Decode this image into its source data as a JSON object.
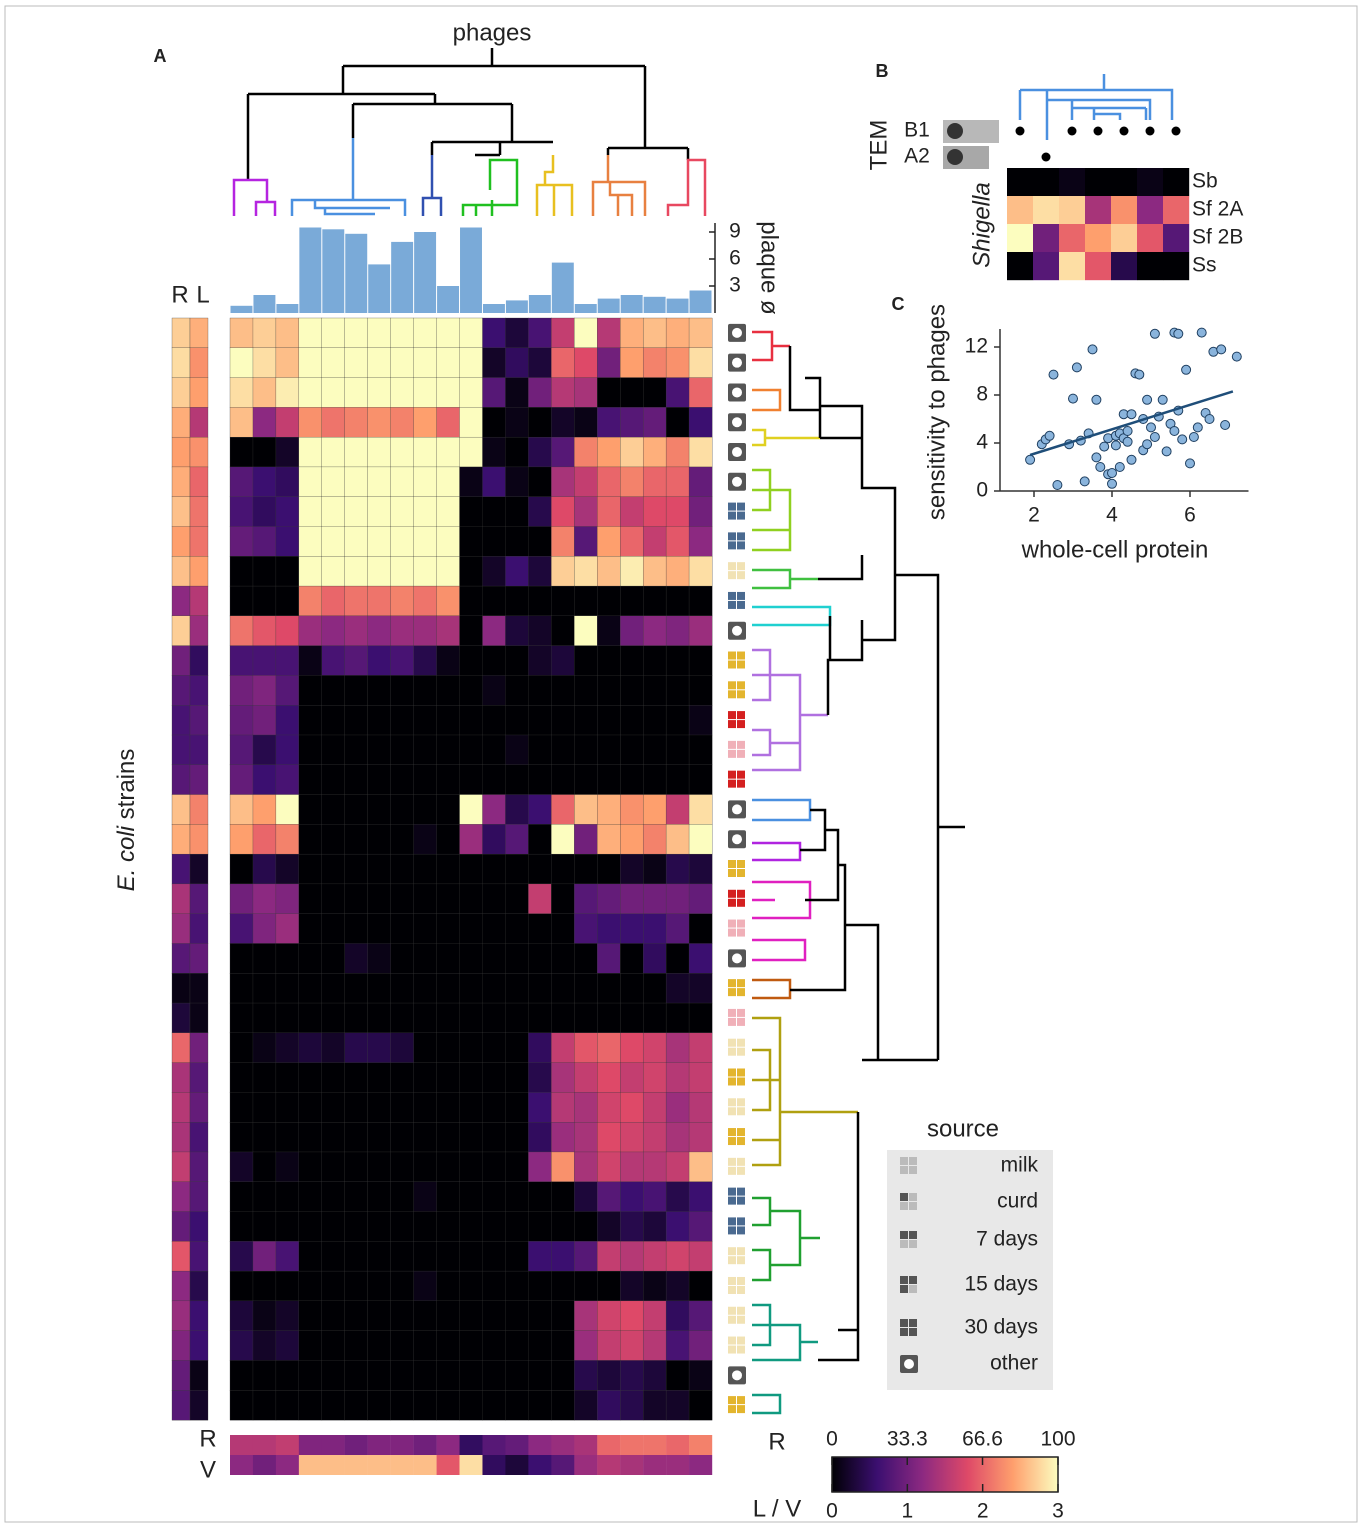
{
  "panel_a": {
    "label": "A",
    "title": "phages",
    "y_label_italic": "E. coli",
    "y_label": "strains",
    "side_headers": [
      "R",
      "L"
    ],
    "bottom_headers": [
      "R",
      "V"
    ],
    "plaque": {
      "label": "plaque ø",
      "ylim": [
        0,
        10
      ],
      "yticks": [
        3,
        6,
        9
      ],
      "color": "#7aaad8",
      "values": [
        0.8,
        2,
        1,
        9.5,
        9.3,
        8.8,
        5.4,
        7.9,
        9,
        3,
        9.5,
        1,
        1.4,
        2,
        5.6,
        1,
        1.6,
        2,
        1.8,
        1.6,
        2.5
      ]
    },
    "heatmap": {
      "rows": [
        [
          2.6,
          2.7,
          2.6,
          3,
          3,
          3,
          3,
          3,
          3,
          3,
          3,
          0.6,
          0.3,
          0.7,
          1.6,
          3,
          1.5,
          2.5,
          2.6,
          2.5,
          2.6
        ],
        [
          3,
          2.8,
          2.6,
          3,
          3,
          3,
          3,
          3,
          3,
          3,
          3,
          0.2,
          0.5,
          0.3,
          2.0,
          1.8,
          1.0,
          2.4,
          2.2,
          2.3,
          2.8
        ],
        [
          2.8,
          2.6,
          2.9,
          3,
          3,
          3,
          3,
          3,
          3,
          3,
          3,
          0.8,
          0.1,
          1.0,
          1.5,
          1.4,
          0,
          0,
          0,
          0.7,
          2.0
        ],
        [
          2.6,
          1.2,
          1.6,
          2.3,
          2.1,
          2.2,
          2.3,
          2.2,
          2.4,
          2.0,
          3,
          0,
          0.1,
          0,
          0.2,
          0.1,
          0.7,
          0.8,
          0.9,
          0,
          0.6
        ],
        [
          0,
          0,
          0.2,
          3,
          3,
          3,
          3,
          3,
          3,
          3,
          3,
          0.1,
          0,
          0.4,
          0.8,
          2.2,
          2.4,
          2.7,
          2.5,
          2.2,
          2.8
        ],
        [
          0.8,
          0.6,
          0.5,
          3,
          3,
          3,
          3,
          3,
          3,
          3,
          0.1,
          0.6,
          0.1,
          0,
          1.4,
          1.6,
          2.0,
          2.2,
          2.0,
          2.0,
          0.9
        ],
        [
          0.7,
          0.5,
          0.6,
          3,
          3,
          3,
          3,
          3,
          3,
          3,
          0,
          0,
          0,
          0.4,
          1.8,
          1.4,
          2.0,
          1.6,
          1.8,
          1.8,
          1.0
        ],
        [
          0.9,
          0.8,
          0.6,
          3,
          3,
          3,
          3,
          3,
          3,
          3,
          0,
          0,
          0,
          0,
          2.2,
          0.8,
          2.4,
          2.0,
          1.6,
          1.9,
          1.2
        ],
        [
          0,
          0,
          0,
          3,
          3,
          3,
          3,
          3,
          3,
          3,
          0,
          0.2,
          0.6,
          0.3,
          2.7,
          2.8,
          2.6,
          2.9,
          2.6,
          2.5,
          2.8
        ],
        [
          0,
          0,
          0,
          2.2,
          2.0,
          2.1,
          2.1,
          2.2,
          2.1,
          2.3,
          0,
          0,
          0,
          0,
          0,
          0,
          0,
          0,
          0,
          0,
          0
        ],
        [
          2.1,
          1.9,
          1.8,
          1.3,
          1.2,
          1.3,
          1.2,
          1.3,
          1.3,
          1.4,
          0,
          1.2,
          0.3,
          0.2,
          0,
          3,
          0.1,
          1.0,
          1.2,
          1.1,
          1.3
        ],
        [
          0.7,
          0.7,
          0.7,
          0.1,
          0.7,
          0.8,
          0.6,
          0.7,
          0.4,
          0.1,
          0,
          0,
          0,
          0.2,
          0.3,
          0,
          0,
          0,
          0,
          0,
          0
        ],
        [
          1.0,
          1.1,
          0.8,
          0,
          0,
          0,
          0,
          0,
          0,
          0,
          0,
          0.1,
          0,
          0,
          0,
          0,
          0,
          0,
          0,
          0,
          0
        ],
        [
          0.9,
          1.0,
          0.6,
          0,
          0,
          0,
          0,
          0,
          0,
          0,
          0,
          0,
          0,
          0,
          0,
          0,
          0,
          0,
          0,
          0,
          0.1
        ],
        [
          0.8,
          0.4,
          0.6,
          0,
          0,
          0,
          0,
          0,
          0,
          0,
          0,
          0,
          0.1,
          0,
          0,
          0,
          0,
          0,
          0,
          0,
          0
        ],
        [
          0.9,
          0.6,
          0.7,
          0,
          0,
          0,
          0,
          0,
          0,
          0,
          0,
          0,
          0,
          0,
          0,
          0,
          0,
          0,
          0,
          0,
          0
        ],
        [
          2.6,
          2.4,
          3,
          0,
          0,
          0,
          0,
          0,
          0,
          0,
          3,
          1.2,
          0.4,
          0.6,
          2.0,
          2.6,
          2.5,
          2.3,
          2.4,
          1.6,
          2.8
        ],
        [
          2.4,
          2.0,
          2.2,
          0,
          0,
          0,
          0,
          0,
          0.1,
          0,
          1.3,
          0.5,
          0.8,
          0,
          3,
          1.0,
          2.5,
          2.4,
          2.2,
          2.6,
          3
        ],
        [
          0,
          0.4,
          0.2,
          0,
          0,
          0,
          0,
          0,
          0,
          0,
          0,
          0,
          0,
          0,
          0,
          0,
          0,
          0.2,
          0.1,
          0.4,
          0.3
        ],
        [
          1.0,
          1.2,
          1.1,
          0,
          0,
          0,
          0,
          0,
          0,
          0,
          0,
          0,
          0,
          1.6,
          0,
          0.8,
          0.9,
          1.0,
          1.0,
          1.0,
          0.9
        ],
        [
          0.7,
          1.1,
          1.3,
          0,
          0,
          0,
          0,
          0,
          0,
          0,
          0,
          0,
          0,
          0,
          0,
          0.7,
          0.6,
          0.6,
          0.6,
          0.8,
          0
        ],
        [
          0,
          0,
          0,
          0,
          0,
          0.2,
          0.1,
          0,
          0,
          0,
          0,
          0,
          0,
          0,
          0,
          0,
          0.8,
          0,
          0.5,
          0,
          0.6
        ],
        [
          0,
          0,
          0,
          0,
          0,
          0,
          0,
          0,
          0,
          0,
          0,
          0,
          0,
          0,
          0,
          0,
          0,
          0,
          0,
          0.2,
          0.2
        ],
        [
          0,
          0,
          0,
          0,
          0,
          0,
          0,
          0,
          0,
          0,
          0,
          0,
          0,
          0,
          0,
          0,
          0,
          0,
          0,
          0,
          0
        ],
        [
          0,
          0.1,
          0.2,
          0.3,
          0.2,
          0.4,
          0.4,
          0.3,
          0,
          0,
          0,
          0,
          0,
          0.5,
          1.6,
          1.9,
          2.0,
          1.8,
          1.7,
          1.4,
          1.6
        ],
        [
          0,
          0,
          0,
          0,
          0,
          0,
          0,
          0,
          0,
          0,
          0,
          0,
          0,
          0.4,
          1.4,
          1.6,
          1.8,
          1.6,
          1.7,
          1.5,
          1.6
        ],
        [
          0,
          0,
          0,
          0,
          0,
          0,
          0,
          0,
          0,
          0,
          0,
          0,
          0,
          0.6,
          1.5,
          1.4,
          1.7,
          1.8,
          1.6,
          1.3,
          1.5
        ],
        [
          0,
          0,
          0,
          0,
          0,
          0,
          0,
          0,
          0,
          0,
          0,
          0,
          0,
          0.5,
          1.3,
          1.4,
          1.8,
          1.7,
          1.6,
          1.4,
          1.5
        ],
        [
          0.2,
          0,
          0.1,
          0,
          0,
          0,
          0,
          0,
          0,
          0,
          0,
          0,
          0,
          1.2,
          2.3,
          1.4,
          1.7,
          1.5,
          1.5,
          1.6,
          2.6
        ],
        [
          0,
          0,
          0,
          0,
          0,
          0,
          0,
          0,
          0.1,
          0,
          0,
          0,
          0,
          0,
          0,
          0.3,
          0.8,
          0.6,
          0.7,
          0.4,
          0.6
        ],
        [
          0,
          0,
          0,
          0,
          0,
          0,
          0,
          0,
          0,
          0,
          0,
          0,
          0,
          0,
          0,
          0,
          0.2,
          0.4,
          0.3,
          0.6,
          0.8
        ],
        [
          0.4,
          1.0,
          0.7,
          0,
          0,
          0,
          0,
          0,
          0,
          0,
          0,
          0,
          0,
          0.6,
          0.6,
          0.8,
          1.6,
          1.5,
          1.6,
          1.7,
          1.6
        ],
        [
          0,
          0,
          0,
          0,
          0,
          0,
          0,
          0,
          0.1,
          0,
          0,
          0,
          0,
          0,
          0,
          0,
          0,
          0.2,
          0.1,
          0.2,
          0
        ],
        [
          0.3,
          0.1,
          0.2,
          0,
          0,
          0,
          0,
          0,
          0,
          0,
          0,
          0,
          0,
          0,
          0,
          1.4,
          1.7,
          1.8,
          1.6,
          0.5,
          0.8
        ],
        [
          0.4,
          0.2,
          0.3,
          0,
          0,
          0,
          0,
          0,
          0,
          0,
          0,
          0,
          0,
          0,
          0,
          1.3,
          1.6,
          1.7,
          1.5,
          0.7,
          1.0
        ],
        [
          0,
          0,
          0,
          0,
          0,
          0,
          0,
          0,
          0,
          0,
          0,
          0,
          0,
          0,
          0,
          0.4,
          0.3,
          0.4,
          0.3,
          0,
          0.1
        ],
        [
          0,
          0,
          0,
          0,
          0,
          0,
          0,
          0,
          0,
          0,
          0,
          0,
          0,
          0,
          0,
          0.2,
          0.5,
          0.4,
          0.2,
          0.2,
          0
        ]
      ]
    },
    "side": {
      "R": [
        90,
        93,
        90,
        83,
        80,
        83,
        87,
        80,
        87,
        40,
        90,
        33,
        27,
        23,
        23,
        27,
        87,
        83,
        23,
        47,
        43,
        27,
        3,
        10,
        67,
        47,
        50,
        47,
        53,
        40,
        30,
        63,
        40,
        43,
        37,
        30,
        27
      ],
      "L": [
        2.5,
        2.3,
        2.4,
        1.5,
        2.3,
        2.0,
        2.1,
        2.1,
        2.4,
        1.5,
        1.3,
        0.5,
        0.7,
        0.8,
        0.7,
        0.9,
        2.2,
        2.3,
        0.2,
        0.8,
        0.7,
        0.9,
        0.1,
        0.1,
        1.0,
        0.8,
        0.9,
        0.7,
        0.8,
        0.8,
        0.6,
        0.7,
        0.4,
        0.6,
        0.6,
        0.1,
        0.2
      ]
    },
    "bottom": {
      "R": [
        50,
        50,
        53,
        37,
        37,
        33,
        37,
        37,
        33,
        40,
        17,
        27,
        30,
        40,
        43,
        47,
        67,
        70,
        70,
        67,
        73
      ],
      "V": [
        1.2,
        1.0,
        1.2,
        2.6,
        2.6,
        2.6,
        2.6,
        2.6,
        2.6,
        1.9,
        2.8,
        0.5,
        0.3,
        0.6,
        0.8,
        1.3,
        1.5,
        1.4,
        1.3,
        1.3,
        1.2
      ]
    },
    "row_sources": [
      5,
      5,
      5,
      5,
      5,
      5,
      2,
      2,
      0,
      2,
      5,
      1,
      1,
      3,
      4,
      3,
      5,
      5,
      1,
      3,
      4,
      5,
      1,
      4,
      0,
      1,
      0,
      1,
      0,
      2,
      2,
      0,
      0,
      0,
      0,
      5,
      1
    ]
  },
  "colorscale": {
    "colors": [
      "#000004",
      "#3b0f70",
      "#8c2981",
      "#de4968",
      "#fe9f6d",
      "#fcfdbf"
    ],
    "r_label": "R",
    "r_lim": [
      0,
      100
    ],
    "r_ticks": [
      0,
      33.3,
      66.6,
      100
    ],
    "lv_label": "L / V",
    "lv_lim": [
      0,
      3
    ],
    "lv_ticks": [
      0,
      1,
      2,
      3
    ]
  },
  "legend": {
    "title": "source",
    "entries": [
      "milk",
      "curd",
      "7 days",
      "15 days",
      "30 days",
      "other"
    ],
    "icon_colors": [
      "#f1e2b4",
      "#e3b52e",
      "#4a6a90",
      "#d42020",
      "#f0b0b8",
      "#555555"
    ]
  },
  "panel_b": {
    "label": "B",
    "tem_label": "TEM",
    "tem": [
      {
        "label": "B1",
        "columns": [
          0,
          2,
          3,
          4,
          5,
          6
        ]
      },
      {
        "label": "A2",
        "columns": [
          1
        ]
      }
    ],
    "genus": "Shigella",
    "rows": [
      "Sb",
      "Sf 2A",
      "Sf 2B",
      "Ss"
    ],
    "values": [
      [
        0,
        0,
        0.1,
        0,
        0,
        0.1,
        0
      ],
      [
        2.6,
        2.8,
        2.7,
        1.4,
        2.3,
        1.2,
        2.0
      ],
      [
        3,
        1.0,
        2.0,
        2.4,
        2.7,
        1.9,
        0.8
      ],
      [
        0,
        0.8,
        2.8,
        1.9,
        0.4,
        0,
        0
      ]
    ]
  },
  "panel_c": {
    "label": "C",
    "x_label": "whole-cell protein",
    "y_label": "sensitivity to phages",
    "xlim": [
      1,
      7.5
    ],
    "ylim": [
      0,
      13.5
    ],
    "xticks": [
      2,
      4,
      6
    ],
    "yticks": [
      0,
      4,
      8,
      12
    ],
    "point_color": "#8ab4dc",
    "line_color": "#1f4e79",
    "points": {
      "x": [
        1.9,
        2.2,
        2.3,
        2.4,
        2.5,
        2.6,
        2.9,
        3.0,
        3.1,
        3.2,
        3.3,
        3.4,
        3.5,
        3.6,
        3.6,
        3.7,
        3.8,
        3.9,
        3.9,
        4.0,
        4.0,
        4.1,
        4.1,
        4.2,
        4.2,
        4.3,
        4.3,
        4.4,
        4.5,
        4.5,
        4.6,
        4.7,
        4.8,
        4.8,
        4.9,
        5.0,
        5.1,
        5.1,
        5.2,
        5.3,
        5.4,
        5.5,
        5.6,
        5.6,
        5.7,
        5.7,
        5.8,
        5.9,
        6.0,
        6.1,
        6.2,
        6.3,
        6.4,
        6.5,
        6.6,
        6.8,
        6.9,
        7.2,
        4.4,
        4.9
      ],
      "y": [
        2.6,
        3.9,
        4.3,
        4.6,
        9.7,
        0.5,
        3.9,
        7.7,
        10.3,
        4.2,
        0.8,
        4.8,
        11.8,
        2.8,
        7.6,
        2.0,
        3.7,
        4.4,
        1.4,
        0.6,
        1.5,
        4.6,
        3.8,
        4.8,
        2.0,
        4.4,
        6.4,
        4.1,
        6.4,
        2.6,
        9.8,
        9.7,
        6.0,
        3.4,
        7.6,
        5.3,
        13.1,
        4.5,
        6.2,
        7.6,
        3.3,
        5.6,
        13.2,
        5.0,
        13.1,
        6.7,
        4.3,
        10.1,
        2.3,
        4.5,
        5.3,
        13.2,
        6.5,
        6.0,
        11.6,
        11.8,
        5.5,
        11.2,
        5.0,
        3.9
      ]
    },
    "fit": {
      "x": [
        1.9,
        7.1
      ],
      "y": [
        3.0,
        8.3
      ]
    }
  }
}
